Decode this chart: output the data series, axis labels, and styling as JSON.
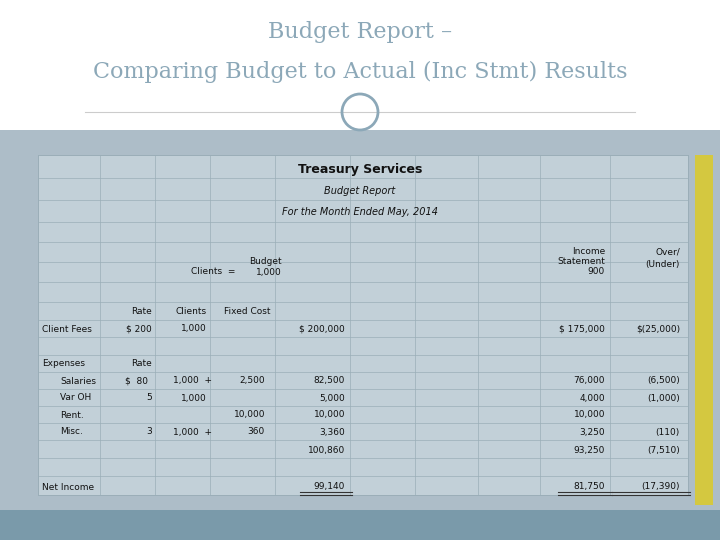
{
  "title_line1": "Budget Report –",
  "title_line2": "Comparing Budget to Actual (Inc Stmt) Results",
  "title_color": "#8ca8b8",
  "bg_color": "#ffffff",
  "table_outer_bg": "#adbdc8",
  "table_inner_bg": "#c2d0d8",
  "bottom_bar_color": "#7a9aaa",
  "right_accent_color": "#d4c840",
  "grid_color": "#9aaeb8",
  "text_color": "#111111",
  "header_company": "Treasury Services",
  "header_sub1": "Budget Report",
  "header_sub2": "For the Month Ended May, 2014"
}
